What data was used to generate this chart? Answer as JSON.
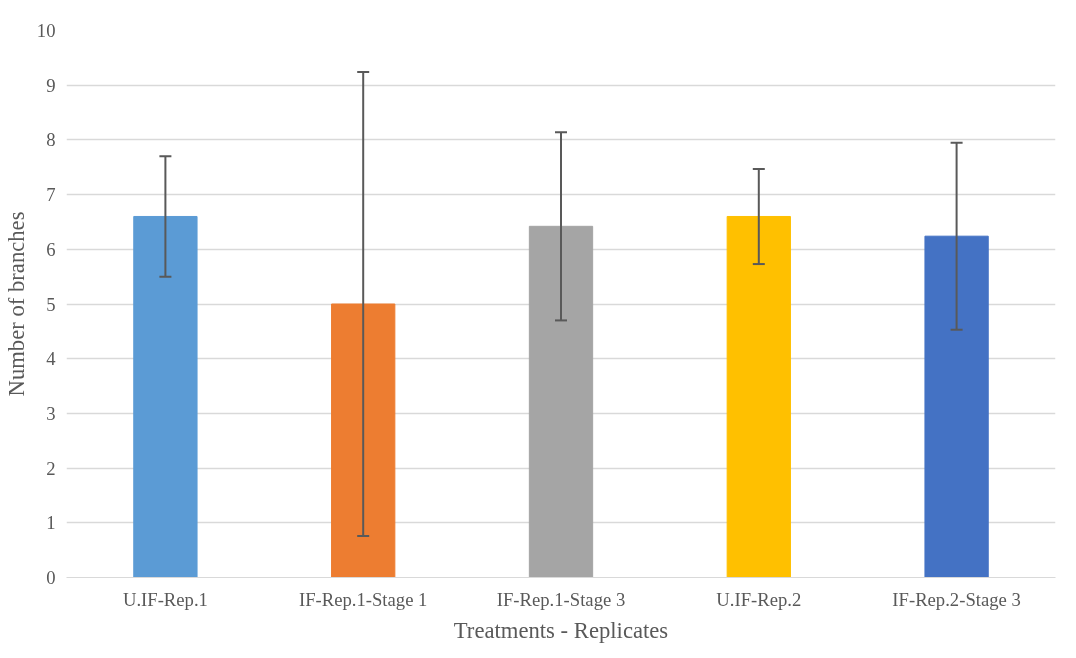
{
  "chart_data": {
    "type": "bar",
    "xlabel": "Treatments - Replicates",
    "ylabel": "Number of branches",
    "categories": [
      "U.IF-Rep.1",
      "IF-Rep.1-Stage 1",
      "IF-Rep.1-Stage 3",
      "U.IF-Rep.2",
      "IF-Rep.2-Stage 3"
    ],
    "values": [
      6.6,
      5.0,
      6.42,
      6.6,
      6.24
    ],
    "errors": [
      1.1,
      4.24,
      1.72,
      0.87,
      1.71
    ],
    "colors": [
      "#5b9bd5",
      "#ed7d31",
      "#a5a5a5",
      "#ffc000",
      "#4472c4"
    ],
    "ylim": [
      0,
      10
    ],
    "yticks": [
      0,
      1,
      2,
      3,
      4,
      5,
      6,
      7,
      8,
      9,
      10
    ],
    "grid": "y"
  }
}
